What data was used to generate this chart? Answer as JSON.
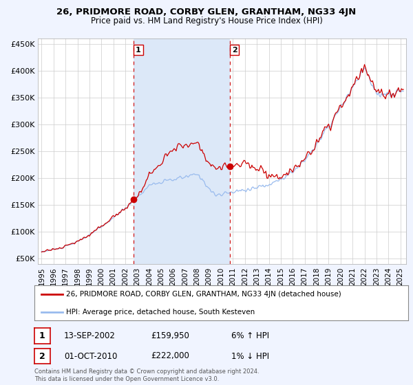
{
  "title": "26, PRIDMORE ROAD, CORBY GLEN, GRANTHAM, NG33 4JN",
  "subtitle": "Price paid vs. HM Land Registry's House Price Index (HPI)",
  "ylabel_ticks": [
    "£50K",
    "£100K",
    "£150K",
    "£200K",
    "£250K",
    "£300K",
    "£350K",
    "£400K",
    "£450K"
  ],
  "ytick_values": [
    50000,
    100000,
    150000,
    200000,
    250000,
    300000,
    350000,
    400000,
    450000
  ],
  "ylim": [
    40000,
    460000
  ],
  "xlim_start": 1994.7,
  "xlim_end": 2025.5,
  "purchase_dates": [
    2002.71,
    2010.75
  ],
  "purchase_prices": [
    159950,
    222000
  ],
  "purchase_labels": [
    "1",
    "2"
  ],
  "legend_house": "26, PRIDMORE ROAD, CORBY GLEN, GRANTHAM, NG33 4JN (detached house)",
  "legend_hpi": "HPI: Average price, detached house, South Kesteven",
  "annotation_rows": [
    {
      "label": "1",
      "date": "13-SEP-2002",
      "price": "£159,950",
      "hpi": "6% ↑ HPI"
    },
    {
      "label": "2",
      "date": "01-OCT-2010",
      "price": "£222,000",
      "hpi": "1% ↓ HPI"
    }
  ],
  "footer": "Contains HM Land Registry data © Crown copyright and database right 2024.\nThis data is licensed under the Open Government Licence v3.0.",
  "bg_color": "#f0f4ff",
  "plot_bg_color": "#ffffff",
  "shade_color": "#dce8f8",
  "grid_color": "#cccccc",
  "hpi_color": "#99bbee",
  "house_color": "#cc0000",
  "purchase_marker_color": "#cc0000",
  "purchase_vline_color": "#cc0000"
}
